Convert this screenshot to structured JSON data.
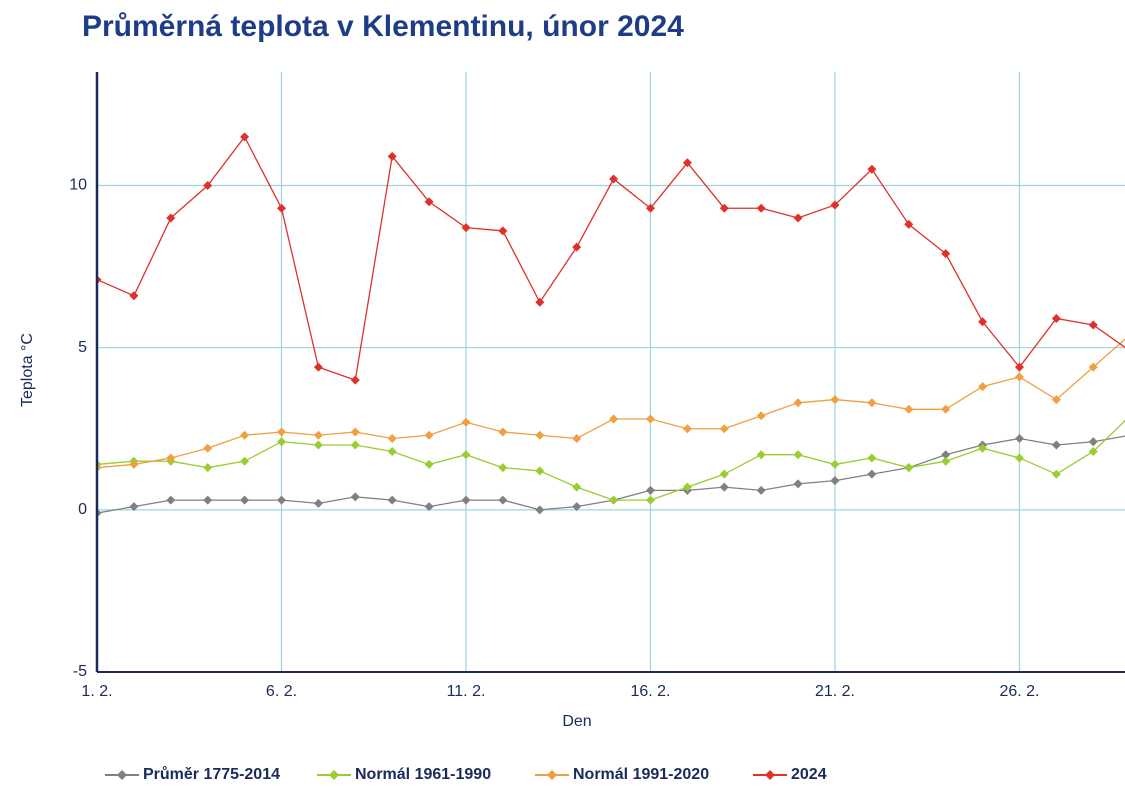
{
  "chart_data": {
    "type": "line",
    "title": "Průměrná teplota v Klementinu, únor 2024",
    "x_label": "Den",
    "y_label": "Teplota  °C",
    "x": [
      1,
      2,
      3,
      4,
      5,
      6,
      7,
      8,
      9,
      10,
      11,
      12,
      13,
      14,
      15,
      16,
      17,
      18,
      19,
      20,
      21,
      22,
      23,
      24,
      25,
      26,
      27,
      28,
      29
    ],
    "xlim": [
      1,
      28.86
    ],
    "xticks": [
      {
        "value": 1,
        "label": "1. 2."
      },
      {
        "value": 6,
        "label": "6. 2."
      },
      {
        "value": 11,
        "label": "11. 2."
      },
      {
        "value": 16,
        "label": "16. 2."
      },
      {
        "value": 21,
        "label": "21. 2."
      },
      {
        "value": 26,
        "label": "26. 2."
      }
    ],
    "ylim": [
      -5,
      13.5
    ],
    "yticks": [
      -5,
      0,
      5,
      10
    ],
    "grid": true,
    "legend": "bottom",
    "series": [
      {
        "name": "Průměr 1775-2014",
        "color": "#808080",
        "values": [
          -0.1,
          0.1,
          0.3,
          0.3,
          0.3,
          0.3,
          0.2,
          0.4,
          0.3,
          0.1,
          0.3,
          0.3,
          0.0,
          0.1,
          0.3,
          0.6,
          0.6,
          0.7,
          0.6,
          0.8,
          0.9,
          1.1,
          1.3,
          1.7,
          2.0,
          2.2,
          2.0,
          2.1,
          2.3
        ]
      },
      {
        "name": "Normál 1961-1990",
        "color": "#9acd32",
        "values": [
          1.4,
          1.5,
          1.5,
          1.3,
          1.5,
          2.1,
          2.0,
          2.0,
          1.8,
          1.4,
          1.7,
          1.3,
          1.2,
          0.7,
          0.3,
          0.3,
          0.7,
          1.1,
          1.7,
          1.7,
          1.4,
          1.6,
          1.3,
          1.5,
          1.9,
          1.6,
          1.1,
          1.8,
          2.9
        ]
      },
      {
        "name": "Normál 1991-2020",
        "color": "#f0a040",
        "values": [
          1.3,
          1.4,
          1.6,
          1.9,
          2.3,
          2.4,
          2.3,
          2.4,
          2.2,
          2.3,
          2.7,
          2.4,
          2.3,
          2.2,
          2.8,
          2.8,
          2.5,
          2.5,
          2.9,
          3.3,
          3.4,
          3.3,
          3.1,
          3.1,
          3.8,
          4.1,
          3.4,
          4.4,
          5.4
        ]
      },
      {
        "name": "2024",
        "color": "#e0302a",
        "values": [
          7.1,
          6.6,
          9.0,
          10.0,
          11.5,
          9.3,
          4.4,
          4.0,
          10.9,
          9.5,
          8.7,
          8.6,
          6.4,
          8.1,
          10.2,
          9.3,
          10.7,
          9.3,
          9.3,
          9.0,
          9.4,
          10.5,
          8.8,
          7.9,
          5.8,
          4.4,
          5.9,
          5.7,
          4.9
        ]
      }
    ]
  }
}
